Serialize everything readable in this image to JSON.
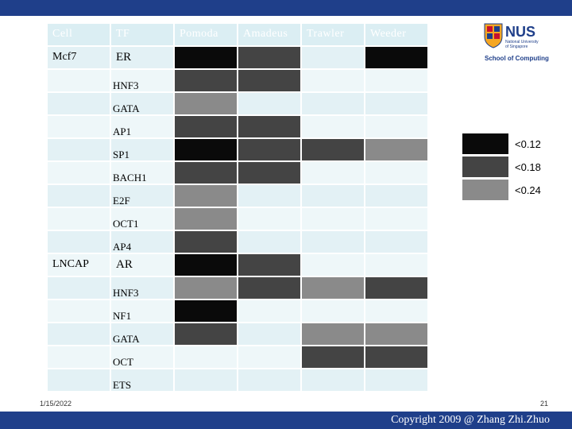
{
  "header": {
    "columns": [
      "Cell",
      "TF",
      "Pomoda",
      "Amadeus",
      "Trawler",
      "Weeder"
    ]
  },
  "rows": [
    {
      "cell": "Mcf7",
      "tf": "ER",
      "values": [
        "black",
        "dark",
        "none",
        "black"
      ]
    },
    {
      "cell": "",
      "tf": "HNF3",
      "values": [
        "dark",
        "dark",
        "none",
        "none"
      ]
    },
    {
      "cell": "",
      "tf": "GATA",
      "values": [
        "gray",
        "none",
        "none",
        "none"
      ]
    },
    {
      "cell": "",
      "tf": "AP1",
      "values": [
        "dark",
        "dark",
        "none",
        "none"
      ]
    },
    {
      "cell": "",
      "tf": "SP1",
      "values": [
        "black",
        "dark",
        "dark",
        "gray"
      ]
    },
    {
      "cell": "",
      "tf": "BACH1",
      "values": [
        "dark",
        "dark",
        "none",
        "none"
      ]
    },
    {
      "cell": "",
      "tf": "E2F",
      "values": [
        "gray",
        "none",
        "none",
        "none"
      ]
    },
    {
      "cell": "",
      "tf": "OCT1",
      "values": [
        "gray",
        "none",
        "none",
        "none"
      ]
    },
    {
      "cell": "",
      "tf": "AP4",
      "values": [
        "dark",
        "none",
        "none",
        "none"
      ]
    },
    {
      "cell": "LNCAP",
      "tf": "AR",
      "values": [
        "black",
        "dark",
        "none",
        "none"
      ]
    },
    {
      "cell": "",
      "tf": "HNF3",
      "values": [
        "gray",
        "dark",
        "gray",
        "dark"
      ]
    },
    {
      "cell": "",
      "tf": "NF1",
      "values": [
        "black",
        "none",
        "none",
        "none"
      ]
    },
    {
      "cell": "",
      "tf": "GATA",
      "values": [
        "dark",
        "none",
        "gray",
        "gray"
      ]
    },
    {
      "cell": "",
      "tf": "OCT",
      "values": [
        "none",
        "none",
        "dark",
        "dark"
      ]
    },
    {
      "cell": "",
      "tf": "ETS",
      "values": [
        "none",
        "none",
        "none",
        "none"
      ]
    }
  ],
  "legend": [
    {
      "label": "<0.12",
      "color": "#0a0a0a"
    },
    {
      "label": "<0.18",
      "color": "#444444"
    },
    {
      "label": "<0.24",
      "color": "#8a8a8a"
    }
  ],
  "colors": {
    "black": "#0a0a0a",
    "dark": "#444444",
    "gray": "#8a8a8a",
    "none_light": "#e3f1f5",
    "none_lighter": "#eef7f9",
    "header": "#dbeef3",
    "bar": "#1f3f8a"
  },
  "footer": {
    "date": "1/15/2022",
    "page": "21",
    "copyright": "Copyright 2009 @ Zhang Zhi.Zhuo"
  },
  "logo": {
    "name": "NUS",
    "sub1": "National University",
    "sub2": "of Singapore",
    "school": "School of Computing",
    "icon": "nus-crest-icon"
  }
}
